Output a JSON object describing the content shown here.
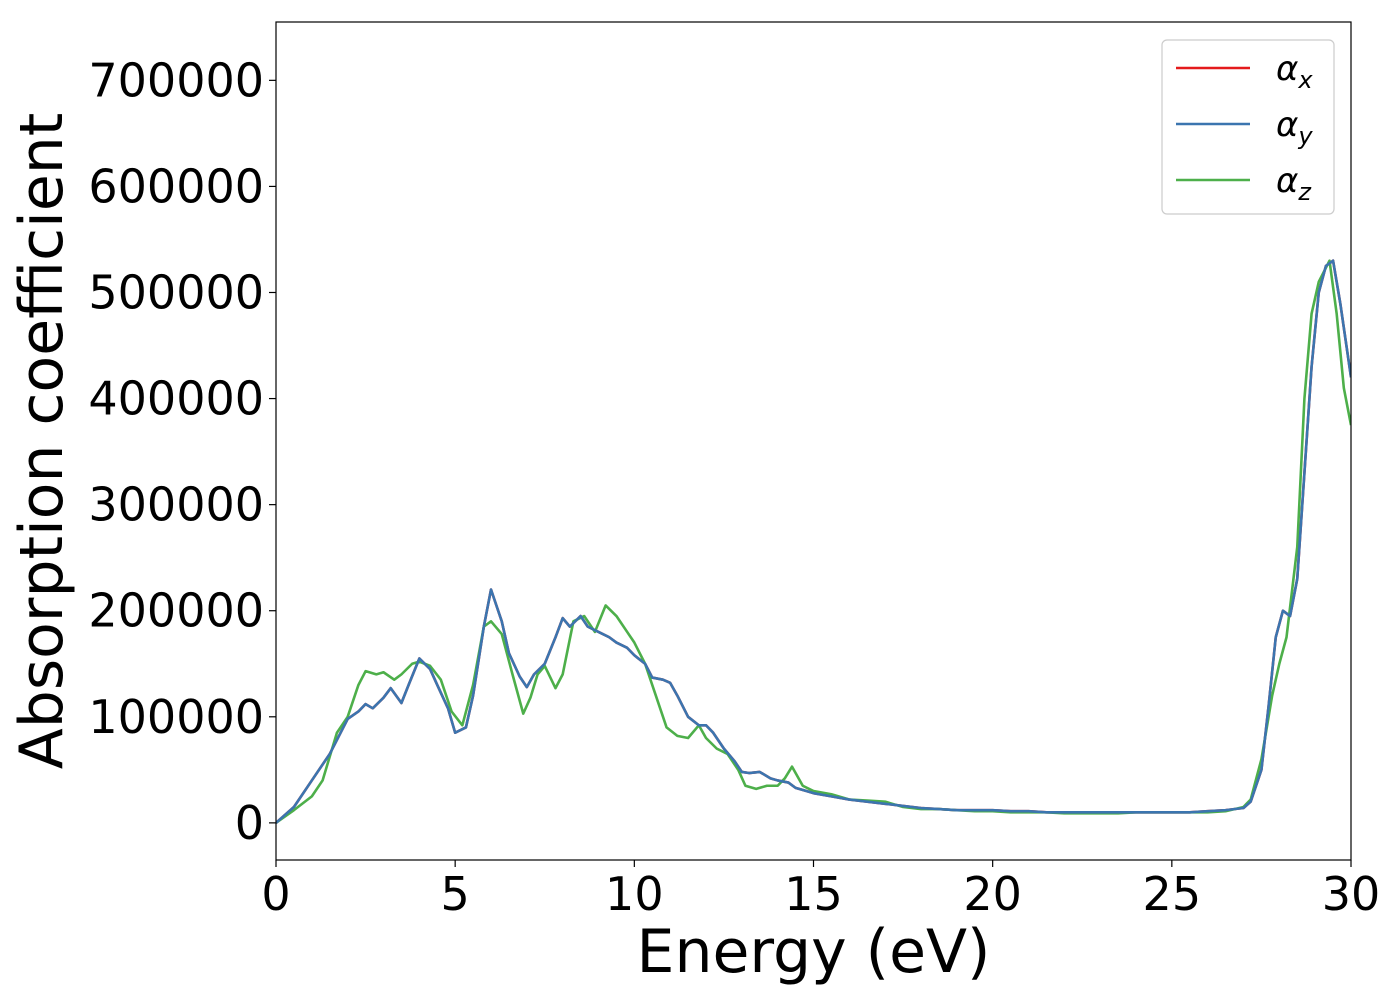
{
  "chart_data": {
    "type": "line",
    "title": "",
    "xlabel": "Energy (eV)",
    "ylabel": "Absorption coefficient",
    "xlim": [
      0,
      30
    ],
    "ylim": [
      -35000,
      755000
    ],
    "xticks": [
      0,
      5,
      10,
      15,
      20,
      25,
      30
    ],
    "xtick_labels": [
      "0",
      "5",
      "10",
      "15",
      "20",
      "25",
      "30"
    ],
    "yticks": [
      0,
      100000,
      200000,
      300000,
      400000,
      500000,
      600000,
      700000
    ],
    "ytick_labels": [
      "0",
      "100000",
      "200000",
      "300000",
      "400000",
      "500000",
      "600000",
      "700000"
    ],
    "grid": false,
    "legend_position": "top-right",
    "series": [
      {
        "name": "α",
        "subscript": "x",
        "color": "#e41a1c",
        "x": [
          0,
          0.5,
          1,
          1.5,
          2,
          2.3,
          2.5,
          2.7,
          3,
          3.2,
          3.5,
          3.7,
          4,
          4.3,
          4.5,
          4.8,
          5,
          5.3,
          5.5,
          5.8,
          6,
          6.3,
          6.5,
          6.8,
          7,
          7.2,
          7.5,
          7.8,
          8,
          8.2,
          8.5,
          8.7,
          9,
          9.3,
          9.5,
          9.8,
          10,
          10.3,
          10.5,
          10.8,
          11,
          11.2,
          11.5,
          11.8,
          12,
          12.2,
          12.5,
          12.8,
          13,
          13.2,
          13.5,
          13.8,
          14,
          14.3,
          14.5,
          14.8,
          15,
          15.5,
          16,
          16.5,
          17,
          17.5,
          18,
          18.5,
          19,
          19.5,
          20,
          20.5,
          21,
          21.5,
          22,
          22.5,
          23,
          23.5,
          24,
          24.5,
          25,
          25.5,
          26,
          26.5,
          27,
          27.2,
          27.5,
          27.7,
          27.9,
          28.1,
          28.3,
          28.5,
          28.7,
          28.9,
          29.1,
          29.3,
          29.5,
          29.7,
          30
        ],
        "values": [
          0,
          15000,
          40000,
          65000,
          98000,
          105000,
          112000,
          108000,
          118000,
          127000,
          113000,
          130000,
          155000,
          145000,
          130000,
          108000,
          85000,
          90000,
          120000,
          185000,
          220000,
          190000,
          160000,
          138000,
          128000,
          140000,
          150000,
          175000,
          193000,
          185000,
          195000,
          185000,
          180000,
          175000,
          170000,
          165000,
          158000,
          150000,
          137000,
          135000,
          132000,
          120000,
          100000,
          92000,
          92000,
          85000,
          70000,
          58000,
          48000,
          47000,
          48000,
          42000,
          40000,
          38000,
          33000,
          30000,
          28000,
          25000,
          22000,
          20000,
          18000,
          16000,
          14000,
          13000,
          12000,
          12000,
          12000,
          11000,
          11000,
          10000,
          10000,
          10000,
          10000,
          10000,
          10000,
          10000,
          10000,
          10000,
          11000,
          12000,
          14000,
          20000,
          50000,
          110000,
          175000,
          200000,
          195000,
          230000,
          330000,
          430000,
          500000,
          525000,
          530000,
          490000,
          420000
        ]
      },
      {
        "name": "α",
        "subscript": "y",
        "color": "#3b75af",
        "x": [
          0,
          0.5,
          1,
          1.5,
          2,
          2.3,
          2.5,
          2.7,
          3,
          3.2,
          3.5,
          3.7,
          4,
          4.3,
          4.5,
          4.8,
          5,
          5.3,
          5.5,
          5.8,
          6,
          6.3,
          6.5,
          6.8,
          7,
          7.2,
          7.5,
          7.8,
          8,
          8.2,
          8.5,
          8.7,
          9,
          9.3,
          9.5,
          9.8,
          10,
          10.3,
          10.5,
          10.8,
          11,
          11.2,
          11.5,
          11.8,
          12,
          12.2,
          12.5,
          12.8,
          13,
          13.2,
          13.5,
          13.8,
          14,
          14.3,
          14.5,
          14.8,
          15,
          15.5,
          16,
          16.5,
          17,
          17.5,
          18,
          18.5,
          19,
          19.5,
          20,
          20.5,
          21,
          21.5,
          22,
          22.5,
          23,
          23.5,
          24,
          24.5,
          25,
          25.5,
          26,
          26.5,
          27,
          27.2,
          27.5,
          27.7,
          27.9,
          28.1,
          28.3,
          28.5,
          28.7,
          28.9,
          29.1,
          29.3,
          29.5,
          29.7,
          30
        ],
        "values": [
          0,
          15000,
          40000,
          65000,
          98000,
          105000,
          112000,
          108000,
          118000,
          127000,
          113000,
          130000,
          155000,
          145000,
          130000,
          108000,
          85000,
          90000,
          120000,
          185000,
          220000,
          190000,
          160000,
          138000,
          128000,
          140000,
          150000,
          175000,
          193000,
          185000,
          195000,
          185000,
          180000,
          175000,
          170000,
          165000,
          158000,
          150000,
          137000,
          135000,
          132000,
          120000,
          100000,
          92000,
          92000,
          85000,
          70000,
          58000,
          48000,
          47000,
          48000,
          42000,
          40000,
          38000,
          33000,
          30000,
          28000,
          25000,
          22000,
          20000,
          18000,
          16000,
          14000,
          13000,
          12000,
          12000,
          12000,
          11000,
          11000,
          10000,
          10000,
          10000,
          10000,
          10000,
          10000,
          10000,
          10000,
          10000,
          11000,
          12000,
          14000,
          20000,
          50000,
          110000,
          175000,
          200000,
          195000,
          230000,
          330000,
          430000,
          500000,
          525000,
          530000,
          490000,
          420000
        ]
      },
      {
        "name": "α",
        "subscript": "z",
        "color": "#4daf4a",
        "x": [
          0,
          0.5,
          1,
          1.3,
          1.7,
          2,
          2.3,
          2.5,
          2.8,
          3,
          3.3,
          3.5,
          3.8,
          4,
          4.3,
          4.6,
          4.9,
          5.2,
          5.5,
          5.8,
          6,
          6.3,
          6.6,
          6.9,
          7.1,
          7.3,
          7.5,
          7.8,
          8,
          8.3,
          8.6,
          8.9,
          9.2,
          9.5,
          9.8,
          10,
          10.3,
          10.6,
          10.9,
          11.2,
          11.5,
          11.8,
          12,
          12.3,
          12.6,
          12.9,
          13.1,
          13.4,
          13.7,
          14,
          14.2,
          14.4,
          14.7,
          15,
          15.5,
          16,
          16.5,
          17,
          17.5,
          18,
          18.5,
          19,
          19.5,
          20,
          20.5,
          21,
          21.5,
          22,
          22.5,
          23,
          23.5,
          24,
          24.5,
          25,
          25.5,
          26,
          26.5,
          27,
          27.2,
          27.5,
          27.8,
          28,
          28.2,
          28.5,
          28.7,
          28.9,
          29.1,
          29.4,
          29.6,
          29.8,
          30
        ],
        "values": [
          0,
          12000,
          25000,
          40000,
          85000,
          100000,
          130000,
          143000,
          140000,
          142000,
          135000,
          140000,
          150000,
          152000,
          148000,
          135000,
          105000,
          92000,
          130000,
          185000,
          190000,
          178000,
          140000,
          103000,
          118000,
          140000,
          148000,
          127000,
          140000,
          190000,
          195000,
          180000,
          205000,
          195000,
          180000,
          170000,
          150000,
          120000,
          90000,
          82000,
          80000,
          92000,
          80000,
          70000,
          65000,
          50000,
          35000,
          32000,
          35000,
          35000,
          42000,
          53000,
          35000,
          30000,
          27000,
          22000,
          21000,
          20000,
          15000,
          13000,
          13000,
          12000,
          11000,
          11000,
          10000,
          10000,
          10000,
          9000,
          9000,
          9000,
          9000,
          10000,
          10000,
          10000,
          10000,
          10000,
          11000,
          15000,
          22000,
          60000,
          120000,
          150000,
          175000,
          260000,
          400000,
          480000,
          510000,
          530000,
          480000,
          410000,
          375000
        ]
      }
    ]
  }
}
